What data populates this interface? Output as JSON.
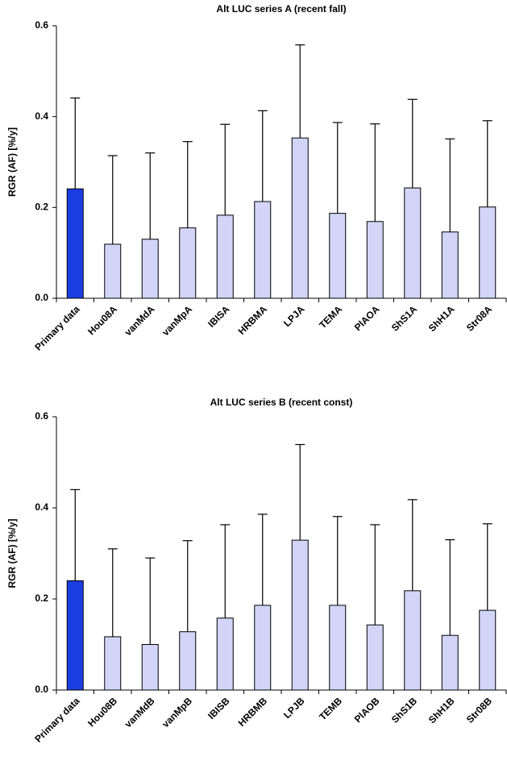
{
  "chart_data": [
    {
      "type": "bar",
      "title": "Alt LUC series A (recent fall)",
      "ylabel": "RGR (AF)  [%/y]",
      "categories": [
        "Primary data",
        "Hou08A",
        "vanMdA",
        "vanMpA",
        "IBISA",
        "HRBMA",
        "LPJA",
        "TEMA",
        "PlAOA",
        "ShS1A",
        "ShH1A",
        "Str08A"
      ],
      "series": [
        {
          "values": [
            0.241,
            0.119,
            0.13,
            0.155,
            0.183,
            0.213,
            0.353,
            0.187,
            0.169,
            0.243,
            0.146,
            0.201
          ],
          "errors": [
            0.2,
            0.195,
            0.19,
            0.19,
            0.2,
            0.2,
            0.205,
            0.2,
            0.215,
            0.195,
            0.205,
            0.19
          ],
          "colors": [
            "#1a3ee0",
            "#d2d5f8",
            "#d2d5f8",
            "#d2d5f8",
            "#d2d5f8",
            "#d2d5f8",
            "#d2d5f8",
            "#d2d5f8",
            "#d2d5f8",
            "#d2d5f8",
            "#d2d5f8",
            "#d2d5f8"
          ]
        }
      ],
      "ylim": [
        0,
        0.6
      ],
      "yticks": [
        {
          "value": 0,
          "label": "0.0"
        },
        {
          "value": 0.2,
          "label": "0.2"
        },
        {
          "value": 0.4,
          "label": "0.4"
        },
        {
          "value": 0.6,
          "label": "0.6"
        }
      ]
    },
    {
      "type": "bar",
      "title": "Alt LUC series B (recent const)",
      "ylabel": "RGR (AF)  [%/y]",
      "categories": [
        "Primary data",
        "Hou08B",
        "vanMdB",
        "vanMpB",
        "IBISB",
        "HRBMB",
        "LPJB",
        "TEMB",
        "PlAOB",
        "ShS1B",
        "ShH1B",
        "Str08B"
      ],
      "series": [
        {
          "values": [
            0.24,
            0.117,
            0.1,
            0.128,
            0.158,
            0.186,
            0.329,
            0.186,
            0.143,
            0.218,
            0.12,
            0.175
          ],
          "errors": [
            0.2,
            0.193,
            0.19,
            0.2,
            0.205,
            0.2,
            0.21,
            0.195,
            0.22,
            0.2,
            0.21,
            0.19
          ],
          "colors": [
            "#1a3ee0",
            "#d2d5f8",
            "#d2d5f8",
            "#d2d5f8",
            "#d2d5f8",
            "#d2d5f8",
            "#d2d5f8",
            "#d2d5f8",
            "#d2d5f8",
            "#d2d5f8",
            "#d2d5f8",
            "#d2d5f8"
          ]
        }
      ],
      "ylim": [
        0,
        0.6
      ],
      "yticks": [
        {
          "value": 0,
          "label": "0.0"
        },
        {
          "value": 0.2,
          "label": "0.2"
        },
        {
          "value": 0.4,
          "label": "0.4"
        },
        {
          "value": 0.6,
          "label": "0.6"
        }
      ]
    }
  ]
}
